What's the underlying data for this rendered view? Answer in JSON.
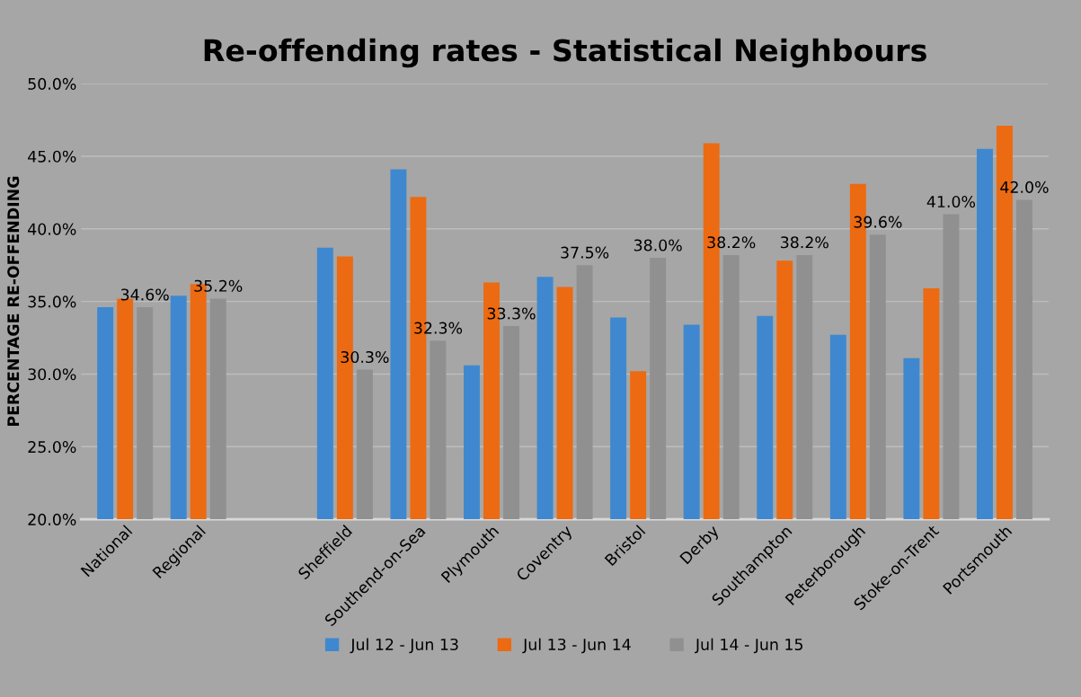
{
  "chart_data": {
    "type": "bar",
    "title": "Re-offending rates - Statistical Neighbours",
    "ylabel": "PERCENTAGE RE-OFFENDING",
    "categories": [
      "National",
      "Regional",
      null,
      "Sheffield",
      "Southend-on-Sea",
      "Plymouth",
      "Coventry",
      "Bristol",
      "Derby",
      "Southampton",
      "Peterborough",
      "Stoke-on-Trent",
      "Portsmouth"
    ],
    "series": [
      {
        "name": "Jul 12 - Jun 13",
        "color": "#3f88cf",
        "values": [
          34.6,
          35.4,
          null,
          38.7,
          44.1,
          30.6,
          36.7,
          33.9,
          33.4,
          34.0,
          32.7,
          31.1,
          45.5
        ]
      },
      {
        "name": "Jul 13 - Jun 14",
        "color": "#ec6a12",
        "values": [
          35.2,
          36.2,
          null,
          38.1,
          42.2,
          36.3,
          36.0,
          30.2,
          45.9,
          37.8,
          43.1,
          35.9,
          47.1
        ]
      },
      {
        "name": "Jul 14 - Jun 15",
        "color": "#909090",
        "values": [
          34.6,
          35.2,
          null,
          30.3,
          32.3,
          33.3,
          37.5,
          38.0,
          38.2,
          38.2,
          39.6,
          41.0,
          42.0
        ],
        "value_labels": [
          "34.6%",
          "35.2%",
          null,
          "30.3%",
          "32.3%",
          "33.3%",
          "37.5%",
          "38.0%",
          "38.2%",
          "38.2%",
          "39.6%",
          "41.0%",
          "42.0%"
        ]
      }
    ],
    "ylim": [
      20,
      50
    ],
    "yticks": [
      {
        "value": 20,
        "label": "20.0%"
      },
      {
        "value": 25,
        "label": "25.0%"
      },
      {
        "value": 30,
        "label": "30.0%"
      },
      {
        "value": 35,
        "label": "35.0%"
      },
      {
        "value": 40,
        "label": "40.0%"
      },
      {
        "value": 45,
        "label": "45.0%"
      },
      {
        "value": 50,
        "label": "50.0%"
      }
    ],
    "grid": "y",
    "legend": "bottom"
  }
}
